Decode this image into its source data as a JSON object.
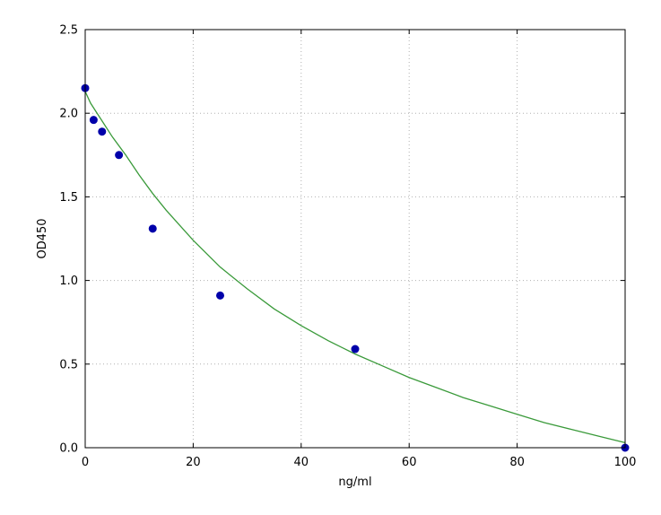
{
  "chart_data": {
    "type": "scatter",
    "title": "",
    "xlabel": "ng/ml",
    "ylabel": "OD450",
    "xlim": [
      0,
      100
    ],
    "ylim": [
      0,
      2.5
    ],
    "xticks": [
      0,
      20,
      40,
      60,
      80,
      100
    ],
    "yticks": [
      0.0,
      0.5,
      1.0,
      1.5,
      2.0,
      2.5
    ],
    "xtick_labels": [
      "0",
      "20",
      "40",
      "60",
      "80",
      "100"
    ],
    "ytick_labels": [
      "0.0",
      "0.5",
      "1.0",
      "1.5",
      "2.0",
      "2.5"
    ],
    "grid": true,
    "series": [
      {
        "type": "scatter",
        "color": "#0000aa",
        "x": [
          0,
          1.56,
          3.12,
          6.25,
          12.5,
          25,
          50,
          100
        ],
        "y": [
          2.15,
          1.96,
          1.89,
          1.75,
          1.31,
          0.91,
          0.59,
          0.0
        ]
      },
      {
        "type": "line",
        "color": "#3a9a3a",
        "x": [
          0,
          1,
          2,
          3,
          5,
          7.5,
          10,
          12.5,
          15,
          20,
          25,
          30,
          35,
          40,
          45,
          50,
          55,
          60,
          65,
          70,
          75,
          80,
          85,
          90,
          95,
          100
        ],
        "y": [
          2.13,
          2.06,
          2.01,
          1.96,
          1.86,
          1.75,
          1.63,
          1.52,
          1.42,
          1.24,
          1.08,
          0.95,
          0.83,
          0.73,
          0.64,
          0.56,
          0.49,
          0.42,
          0.36,
          0.3,
          0.25,
          0.2,
          0.15,
          0.11,
          0.07,
          0.03
        ]
      }
    ]
  }
}
